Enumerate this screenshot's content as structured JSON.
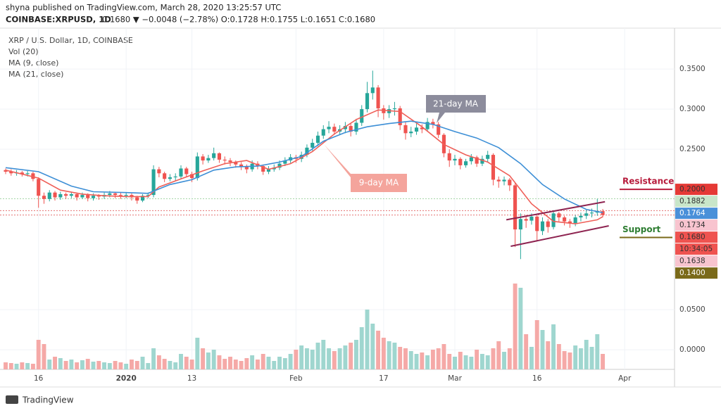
{
  "header": {
    "published": "shyna published on TradingView.com, March 28, 2020 13:25:57 UTC",
    "symbol": "COINBASE:XRPUSD, 1D",
    "quote": "0.1680 ▼ −0.0048 (−2.78%) O:0.1728 H:0.1755 L:0.1651 C:0.1680"
  },
  "footer": "TradingView",
  "chart_data": {
    "type": "candlestick",
    "title": "XRP / U.S. Dollar, 1D, COINBASE",
    "indicators": [
      "Vol (20)",
      "MA (9, close)",
      "MA (21, close)"
    ],
    "up_color": "#26a69a",
    "down_color": "#ef5350",
    "up_volume_color": "#9fd6cf",
    "down_volume_color": "#f5a9a7",
    "xlim": [
      -1.03,
      122.1
    ],
    "xticks": [
      {
        "value": 6,
        "label": "16"
      },
      {
        "value": 22,
        "label": "2020"
      },
      {
        "value": 34,
        "label": "13"
      },
      {
        "value": 53,
        "label": "Feb"
      },
      {
        "value": 69,
        "label": "17"
      },
      {
        "value": 82,
        "label": "Mar"
      },
      {
        "value": 97,
        "label": "16"
      },
      {
        "value": 113,
        "label": "Apr"
      }
    ],
    "ylim": [
      -0.0245,
      0.401
    ],
    "yticks": [
      {
        "value": 0,
        "label": "0.0000"
      },
      {
        "value": 0.05,
        "label": "0.0500"
      },
      {
        "value": 0.25,
        "label": "0.2500"
      },
      {
        "value": 0.3,
        "label": "0.3000"
      },
      {
        "value": 0.35,
        "label": "0.3500"
      }
    ],
    "open": [
      0.224,
      0.222,
      0.22,
      0.221,
      0.219,
      0.22,
      0.213,
      0.192,
      0.188,
      0.196,
      0.19,
      0.194,
      0.192,
      0.194,
      0.19,
      0.193,
      0.189,
      0.192,
      0.191,
      0.193,
      0.195,
      0.193,
      0.192,
      0.193,
      0.19,
      0.186,
      0.192,
      0.193,
      0.225,
      0.22,
      0.213,
      0.215,
      0.216,
      0.226,
      0.219,
      0.214,
      0.241,
      0.236,
      0.239,
      0.245,
      0.237,
      0.236,
      0.234,
      0.231,
      0.228,
      0.225,
      0.232,
      0.229,
      0.222,
      0.225,
      0.227,
      0.232,
      0.236,
      0.24,
      0.238,
      0.243,
      0.252,
      0.258,
      0.267,
      0.275,
      0.278,
      0.272,
      0.275,
      0.279,
      0.272,
      0.283,
      0.3,
      0.32,
      0.327,
      0.301,
      0.295,
      0.3,
      0.301,
      0.28,
      0.27,
      0.272,
      0.277,
      0.275,
      0.284,
      0.281,
      0.268,
      0.245,
      0.236,
      0.238,
      0.23,
      0.235,
      0.24,
      0.232,
      0.238,
      0.243,
      0.212,
      0.21,
      0.212,
      0.205,
      0.15,
      0.163,
      0.161,
      0.166,
      0.148,
      0.16,
      0.153,
      0.17,
      0.165,
      0.16,
      0.158,
      0.165,
      0.167,
      0.17,
      0.171,
      0.1728
    ],
    "high": [
      0.226,
      0.225,
      0.224,
      0.223,
      0.223,
      0.222,
      0.215,
      0.196,
      0.199,
      0.198,
      0.197,
      0.196,
      0.197,
      0.196,
      0.196,
      0.195,
      0.195,
      0.194,
      0.196,
      0.198,
      0.197,
      0.196,
      0.196,
      0.195,
      0.192,
      0.194,
      0.196,
      0.23,
      0.228,
      0.222,
      0.219,
      0.22,
      0.23,
      0.228,
      0.222,
      0.246,
      0.244,
      0.243,
      0.252,
      0.246,
      0.241,
      0.239,
      0.236,
      0.234,
      0.231,
      0.236,
      0.235,
      0.231,
      0.229,
      0.231,
      0.236,
      0.24,
      0.244,
      0.243,
      0.247,
      0.256,
      0.263,
      0.272,
      0.28,
      0.285,
      0.282,
      0.28,
      0.284,
      0.283,
      0.288,
      0.305,
      0.334,
      0.348,
      0.33,
      0.305,
      0.305,
      0.309,
      0.304,
      0.284,
      0.278,
      0.282,
      0.281,
      0.289,
      0.288,
      0.284,
      0.27,
      0.25,
      0.243,
      0.24,
      0.238,
      0.244,
      0.242,
      0.242,
      0.248,
      0.245,
      0.216,
      0.216,
      0.214,
      0.208,
      0.17,
      0.168,
      0.17,
      0.168,
      0.165,
      0.163,
      0.174,
      0.172,
      0.167,
      0.163,
      0.168,
      0.171,
      0.174,
      0.176,
      0.1882,
      0.1755
    ],
    "low": [
      0.219,
      0.217,
      0.217,
      0.216,
      0.216,
      0.21,
      0.177,
      0.182,
      0.185,
      0.186,
      0.187,
      0.188,
      0.189,
      0.186,
      0.188,
      0.185,
      0.186,
      0.187,
      0.188,
      0.19,
      0.189,
      0.188,
      0.189,
      0.186,
      0.182,
      0.184,
      0.189,
      0.19,
      0.215,
      0.209,
      0.21,
      0.211,
      0.213,
      0.215,
      0.209,
      0.211,
      0.231,
      0.233,
      0.236,
      0.233,
      0.231,
      0.229,
      0.227,
      0.224,
      0.22,
      0.222,
      0.225,
      0.218,
      0.219,
      0.222,
      0.224,
      0.229,
      0.233,
      0.233,
      0.234,
      0.24,
      0.248,
      0.254,
      0.263,
      0.27,
      0.268,
      0.268,
      0.27,
      0.266,
      0.268,
      0.279,
      0.296,
      0.312,
      0.29,
      0.287,
      0.289,
      0.292,
      0.274,
      0.262,
      0.265,
      0.268,
      0.27,
      0.272,
      0.276,
      0.264,
      0.24,
      0.228,
      0.23,
      0.225,
      0.227,
      0.231,
      0.228,
      0.229,
      0.234,
      0.205,
      0.202,
      0.205,
      0.198,
      0.128,
      0.113,
      0.152,
      0.156,
      0.135,
      0.143,
      0.146,
      0.15,
      0.16,
      0.155,
      0.152,
      0.154,
      0.16,
      0.163,
      0.165,
      0.167,
      0.1651
    ],
    "close": [
      0.222,
      0.22,
      0.221,
      0.219,
      0.22,
      0.213,
      0.192,
      0.188,
      0.196,
      0.19,
      0.194,
      0.192,
      0.194,
      0.19,
      0.193,
      0.189,
      0.192,
      0.191,
      0.193,
      0.195,
      0.193,
      0.192,
      0.193,
      0.19,
      0.186,
      0.192,
      0.193,
      0.225,
      0.22,
      0.213,
      0.215,
      0.216,
      0.226,
      0.219,
      0.214,
      0.241,
      0.236,
      0.239,
      0.245,
      0.237,
      0.236,
      0.234,
      0.231,
      0.228,
      0.225,
      0.232,
      0.229,
      0.222,
      0.225,
      0.227,
      0.232,
      0.236,
      0.24,
      0.238,
      0.243,
      0.252,
      0.258,
      0.267,
      0.275,
      0.278,
      0.272,
      0.275,
      0.279,
      0.272,
      0.283,
      0.3,
      0.32,
      0.327,
      0.301,
      0.295,
      0.3,
      0.301,
      0.28,
      0.27,
      0.272,
      0.277,
      0.275,
      0.284,
      0.281,
      0.268,
      0.245,
      0.236,
      0.238,
      0.23,
      0.235,
      0.24,
      0.232,
      0.238,
      0.243,
      0.212,
      0.21,
      0.212,
      0.205,
      0.15,
      0.163,
      0.161,
      0.166,
      0.148,
      0.16,
      0.153,
      0.17,
      0.165,
      0.16,
      0.158,
      0.165,
      0.167,
      0.17,
      0.171,
      0.1728,
      0.168
    ],
    "vlim": [
      0,
      130
    ],
    "volume": [
      10,
      9,
      8,
      10,
      9,
      8,
      42,
      36,
      14,
      18,
      16,
      12,
      14,
      10,
      13,
      15,
      11,
      12,
      10,
      9,
      12,
      10,
      8,
      14,
      12,
      18,
      9,
      30,
      20,
      15,
      12,
      10,
      22,
      18,
      14,
      45,
      30,
      24,
      28,
      20,
      15,
      18,
      14,
      12,
      16,
      20,
      14,
      22,
      18,
      12,
      18,
      16,
      22,
      28,
      34,
      30,
      28,
      38,
      42,
      30,
      26,
      30,
      34,
      38,
      42,
      60,
      85,
      65,
      55,
      45,
      40,
      38,
      32,
      30,
      26,
      22,
      24,
      20,
      28,
      30,
      36,
      22,
      18,
      25,
      20,
      18,
      28,
      22,
      20,
      30,
      40,
      25,
      30,
      122,
      116,
      50,
      32,
      70,
      56,
      40,
      64,
      36,
      26,
      24,
      34,
      30,
      42,
      32,
      50,
      22
    ],
    "series": [
      {
        "name": "9-day MA",
        "color": "#ef5f58",
        "x": [
          0,
          6,
          10,
          14,
          18,
          22,
          26,
          28,
          32,
          36,
          40,
          44,
          48,
          52,
          56,
          60,
          64,
          68,
          72,
          76,
          80,
          84,
          88,
          92,
          96,
          100,
          104,
          108,
          109
        ],
        "values": [
          0.224,
          0.214,
          0.199,
          0.194,
          0.192,
          0.191,
          0.191,
          0.203,
          0.213,
          0.223,
          0.232,
          0.236,
          0.225,
          0.232,
          0.247,
          0.269,
          0.287,
          0.299,
          0.297,
          0.278,
          0.256,
          0.243,
          0.234,
          0.217,
          0.182,
          0.16,
          0.157,
          0.162,
          0.166
        ]
      },
      {
        "name": "21-day MA",
        "color": "#3d8fd6",
        "x": [
          0,
          6,
          12,
          16,
          22,
          26,
          30,
          34,
          38,
          42,
          46,
          50,
          54,
          58,
          62,
          66,
          70,
          74,
          78,
          82,
          86,
          90,
          94,
          98,
          102,
          106,
          109
        ],
        "values": [
          0.227,
          0.222,
          0.204,
          0.197,
          0.196,
          0.195,
          0.206,
          0.212,
          0.224,
          0.228,
          0.229,
          0.234,
          0.241,
          0.26,
          0.271,
          0.278,
          0.282,
          0.285,
          0.281,
          0.272,
          0.264,
          0.252,
          0.232,
          0.206,
          0.188,
          0.175,
          0.171
        ]
      }
    ],
    "channel": {
      "color": "#8e2451",
      "upper": {
        "x": [
          91.4,
          109.4
        ],
        "values": [
          0.162,
          0.1845
        ]
      },
      "lower": {
        "x": [
          92.2,
          110.1
        ],
        "values": [
          0.129,
          0.1545
        ]
      }
    },
    "levels": [
      {
        "label": "Resistance",
        "value": 0.2,
        "color": "#b71c3c"
      },
      {
        "label": "Support",
        "value": 0.14,
        "color": "#7a6a1a",
        "text_color": "#2e7d32"
      }
    ],
    "price_labels": [
      {
        "value": 0.2,
        "label": "0.2000",
        "color": "#e53935"
      },
      {
        "value": 0.1882,
        "label": "0.1882",
        "color": "#c8e6c9",
        "guide": "#a5d6a7"
      },
      {
        "value": 0.1764,
        "label": "0.1764",
        "color": "#4a90d9"
      },
      {
        "value": 0.1734,
        "label": "0.1734",
        "color": "#f8c4cf",
        "guide": "#e57373"
      },
      {
        "value": 0.168,
        "label": "0.1680",
        "color": "#ef5350",
        "guide": "#e57373"
      },
      {
        "label": "10:34:05",
        "color": "#ef5350"
      },
      {
        "value": 0.1638,
        "label": "0.1638",
        "color": "#f8c4cf"
      },
      {
        "value": 0.14,
        "label": "0.1400",
        "color": "#7a6a1a"
      }
    ]
  }
}
